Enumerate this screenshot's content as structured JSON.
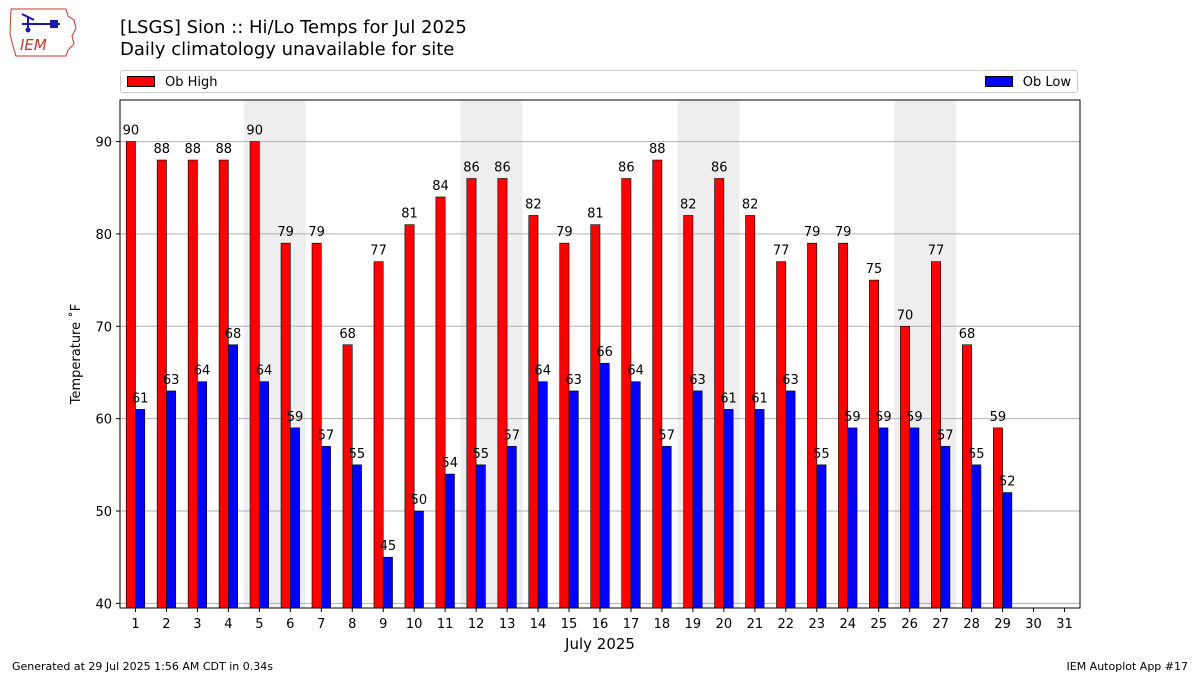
{
  "header": {
    "title": "[LSGS] Sion :: Hi/Lo Temps for Jul 2025",
    "subtitle": "Daily climatology unavailable for site",
    "logo_text": "IEM"
  },
  "legend": {
    "high_label": "Ob High",
    "low_label": "Ob Low"
  },
  "footer": {
    "generated": "Generated at 29 Jul 2025 1:56 AM CDT in 0.34s",
    "app": "IEM Autoplot App #17"
  },
  "colors": {
    "high": "#ff0000",
    "low": "#0000ff",
    "weekend_shade": "#eeeeee",
    "grid": "#b0b0b0"
  },
  "chart_data": {
    "type": "bar",
    "title": "[LSGS] Sion :: Hi/Lo Temps for Jul 2025",
    "subtitle": "Daily climatology unavailable for site",
    "xlabel": "July 2025",
    "ylabel": "Temperature ˚F",
    "ylim": [
      39.5,
      94.5
    ],
    "yticks": [
      40,
      50,
      60,
      70,
      80,
      90
    ],
    "grid": "horizontal",
    "legend_placement": "top",
    "categories": [
      "1",
      "2",
      "3",
      "4",
      "5",
      "6",
      "7",
      "8",
      "9",
      "10",
      "11",
      "12",
      "13",
      "14",
      "15",
      "16",
      "17",
      "18",
      "19",
      "20",
      "21",
      "22",
      "23",
      "24",
      "25",
      "26",
      "27",
      "28",
      "29",
      "30",
      "31"
    ],
    "shaded_days": [
      [
        5,
        6
      ],
      [
        12,
        13
      ],
      [
        19,
        20
      ],
      [
        26,
        27
      ]
    ],
    "series": [
      {
        "name": "Ob High",
        "color": "#ff0000",
        "values": [
          90,
          88,
          88,
          88,
          90,
          79,
          79,
          68,
          77,
          81,
          84,
          86,
          86,
          82,
          79,
          81,
          86,
          88,
          82,
          86,
          82,
          77,
          79,
          79,
          75,
          70,
          77,
          68,
          59,
          null,
          null
        ]
      },
      {
        "name": "Ob Low",
        "color": "#0000ff",
        "values": [
          61,
          63,
          64,
          68,
          64,
          59,
          57,
          55,
          45,
          50,
          54,
          55,
          57,
          64,
          63,
          66,
          64,
          57,
          63,
          61,
          61,
          63,
          55,
          59,
          59,
          59,
          57,
          55,
          52,
          null,
          null
        ]
      }
    ]
  }
}
